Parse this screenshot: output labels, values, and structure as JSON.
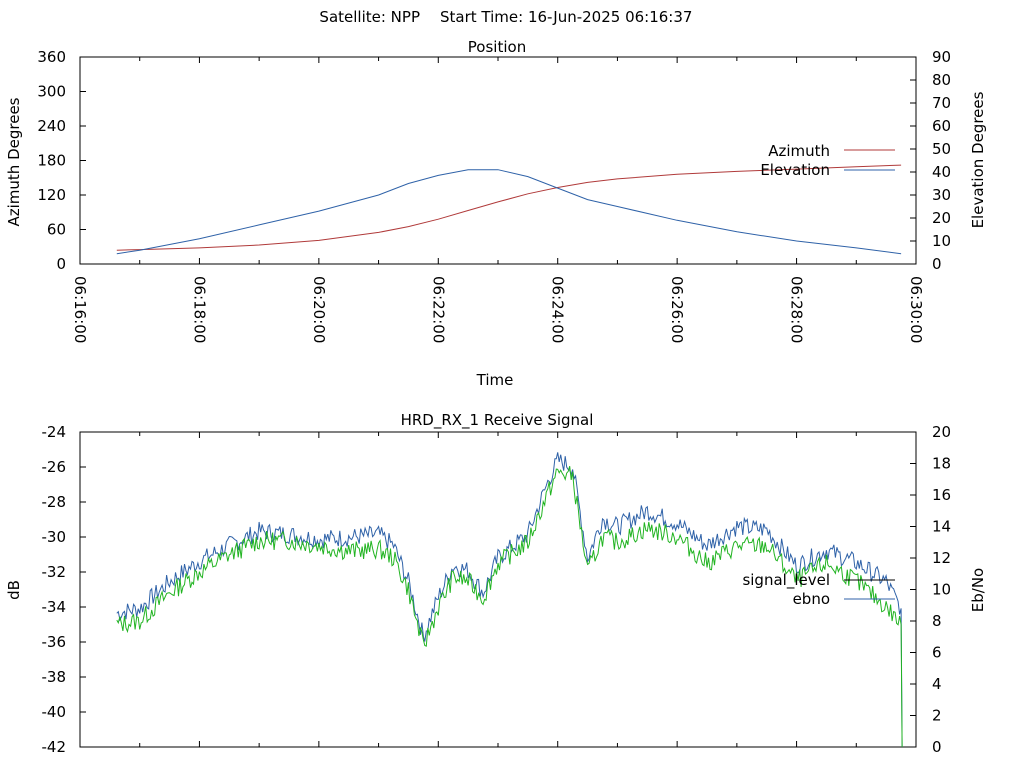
{
  "header": {
    "satellite_label": "Satellite: NPP",
    "start_time_label": "Start Time: 16-Jun-2025 06:16:37"
  },
  "chart_data": [
    {
      "type": "line",
      "title": "Position",
      "xlabel": "Time",
      "ylabel": "Azimuth Degrees",
      "y2label": "Elevation Degrees",
      "x_ticks": [
        "06:16:00",
        "06:18:00",
        "06:20:00",
        "06:22:00",
        "06:24:00",
        "06:26:00",
        "06:28:00",
        "06:30:00"
      ],
      "xlim": [
        "06:16:00",
        "06:30:00"
      ],
      "ylim": [
        0,
        360
      ],
      "y2lim": [
        0,
        90
      ],
      "y_ticks": [
        0,
        60,
        120,
        180,
        240,
        300,
        360
      ],
      "y2_ticks": [
        0,
        10,
        20,
        30,
        40,
        50,
        60,
        70,
        80,
        90
      ],
      "legend_position": "right",
      "x": [
        "06:16:37",
        "06:17:00",
        "06:18:00",
        "06:19:00",
        "06:20:00",
        "06:21:00",
        "06:21:30",
        "06:22:00",
        "06:22:30",
        "06:23:00",
        "06:23:30",
        "06:24:00",
        "06:24:30",
        "06:25:00",
        "06:26:00",
        "06:27:00",
        "06:28:00",
        "06:29:00",
        "06:29:45"
      ],
      "series": [
        {
          "name": "Azimuth",
          "axis": "left",
          "color": "#b03a3a",
          "values": [
            24,
            25,
            28,
            33,
            41,
            55,
            65,
            78,
            93,
            108,
            122,
            133,
            142,
            148,
            156,
            161,
            165,
            169,
            172
          ]
        },
        {
          "name": "Elevation",
          "axis": "right",
          "color": "#2f62a8",
          "values": [
            4.5,
            6,
            11,
            17,
            23,
            30,
            35,
            38.5,
            41,
            41,
            38,
            33,
            28,
            25,
            19,
            14,
            10,
            7,
            4.5
          ]
        }
      ]
    },
    {
      "type": "line",
      "title": "HRD_RX_1 Receive Signal",
      "ylabel": "dB",
      "y2label": "Eb/No",
      "xlim": [
        "06:16:00",
        "06:30:00"
      ],
      "ylim": [
        -42,
        -24
      ],
      "y2lim": [
        0,
        20
      ],
      "y_ticks": [
        -42,
        -40,
        -38,
        -36,
        -34,
        -32,
        -30,
        -28,
        -26,
        -24
      ],
      "y2_ticks": [
        0,
        2,
        4,
        6,
        8,
        10,
        12,
        14,
        16,
        18,
        20
      ],
      "legend_position": "right",
      "x": [
        "06:16:37",
        "06:17:00",
        "06:17:30",
        "06:18:00",
        "06:18:30",
        "06:19:00",
        "06:19:30",
        "06:20:00",
        "06:20:30",
        "06:21:00",
        "06:21:15",
        "06:21:30",
        "06:21:45",
        "06:22:00",
        "06:22:15",
        "06:22:30",
        "06:22:45",
        "06:23:00",
        "06:23:30",
        "06:23:50",
        "06:24:00",
        "06:24:15",
        "06:24:30",
        "06:24:45",
        "06:25:00",
        "06:25:30",
        "06:26:00",
        "06:26:30",
        "06:27:00",
        "06:27:30",
        "06:28:00",
        "06:28:30",
        "06:29:00",
        "06:29:30",
        "06:29:45",
        "06:29:46"
      ],
      "series": [
        {
          "name": "signal_level",
          "axis": "left",
          "color": "#000000",
          "values": [
            -35.0,
            -34.8,
            -33.2,
            -32.0,
            -31.0,
            -30.2,
            -30.2,
            -30.5,
            -30.8,
            -30.7,
            -31.2,
            -33.0,
            -36.3,
            -34.0,
            -32.3,
            -32.5,
            -33.5,
            -31.5,
            -30.3,
            -27.5,
            -26.3,
            -26.5,
            -32.0,
            -30.0,
            -30.3,
            -29.5,
            -30.0,
            -31.5,
            -30.5,
            -30.5,
            -32.5,
            -31.5,
            -32.5,
            -34.0,
            -35.0,
            -42.0
          ]
        },
        {
          "name": "ebno",
          "axis": "right",
          "color": "#2f62a8",
          "values": [
            8.5,
            8.8,
            10.5,
            11.8,
            12.8,
            13.7,
            13.5,
            13.2,
            13.3,
            13.5,
            12.8,
            10.5,
            7.0,
            9.5,
            11.5,
            11.2,
            9.8,
            12.0,
            13.5,
            16.8,
            18.2,
            17.8,
            12.0,
            14.5,
            14.0,
            15.0,
            14.2,
            12.8,
            14.0,
            13.8,
            11.5,
            12.5,
            11.7,
            10.5,
            8.8,
            0
          ]
        }
      ]
    }
  ]
}
